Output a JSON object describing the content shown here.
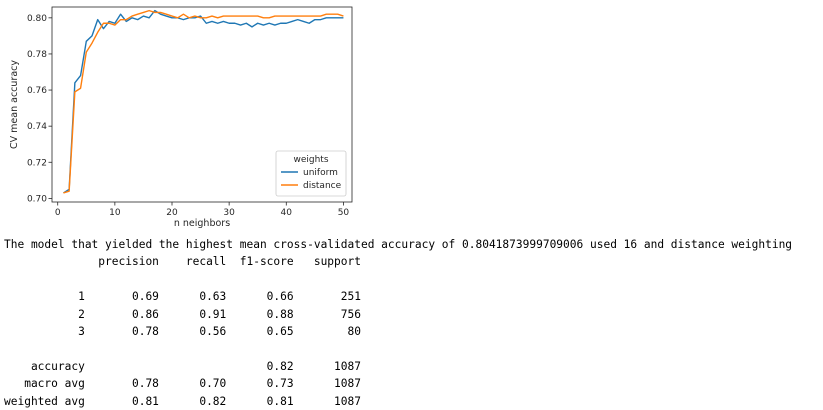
{
  "chart_data": {
    "type": "line",
    "xlabel": "n neighbors",
    "ylabel": "CV mean accuracy",
    "xlim": [
      -1,
      51.5
    ],
    "ylim": [
      0.698,
      0.806
    ],
    "xticks": [
      0,
      10,
      20,
      30,
      40,
      50
    ],
    "yticks": [
      0.7,
      0.72,
      0.74,
      0.76,
      0.78,
      0.8
    ],
    "ytick_labels": [
      "0.70",
      "0.72",
      "0.74",
      "0.76",
      "0.78",
      "0.80"
    ],
    "grid": false,
    "legend": {
      "title": "weights",
      "placement": "lower-right"
    },
    "x": [
      1,
      2,
      3,
      4,
      5,
      6,
      7,
      8,
      9,
      10,
      11,
      12,
      13,
      14,
      15,
      16,
      17,
      18,
      19,
      20,
      21,
      22,
      23,
      24,
      25,
      26,
      27,
      28,
      29,
      30,
      31,
      32,
      33,
      34,
      35,
      36,
      37,
      38,
      39,
      40,
      41,
      42,
      43,
      44,
      45,
      46,
      47,
      48,
      49,
      50
    ],
    "series": [
      {
        "name": "uniform",
        "color": "#1f77b4",
        "values": [
          0.703,
          0.705,
          0.764,
          0.768,
          0.787,
          0.79,
          0.799,
          0.794,
          0.798,
          0.797,
          0.802,
          0.798,
          0.8,
          0.799,
          0.801,
          0.8,
          0.804,
          0.802,
          0.801,
          0.8,
          0.8,
          0.799,
          0.8,
          0.8,
          0.801,
          0.797,
          0.798,
          0.797,
          0.798,
          0.797,
          0.797,
          0.796,
          0.797,
          0.795,
          0.797,
          0.796,
          0.797,
          0.796,
          0.797,
          0.797,
          0.798,
          0.799,
          0.798,
          0.797,
          0.799,
          0.799,
          0.8,
          0.8,
          0.8,
          0.8
        ]
      },
      {
        "name": "distance",
        "color": "#ff7f0e",
        "values": [
          0.703,
          0.704,
          0.759,
          0.761,
          0.781,
          0.786,
          0.792,
          0.797,
          0.797,
          0.796,
          0.799,
          0.799,
          0.801,
          0.802,
          0.803,
          0.804,
          0.803,
          0.803,
          0.802,
          0.801,
          0.8,
          0.802,
          0.8,
          0.801,
          0.8,
          0.8,
          0.801,
          0.8,
          0.801,
          0.801,
          0.801,
          0.801,
          0.801,
          0.801,
          0.801,
          0.8,
          0.8,
          0.801,
          0.801,
          0.801,
          0.801,
          0.801,
          0.801,
          0.801,
          0.801,
          0.801,
          0.802,
          0.802,
          0.802,
          0.801
        ]
      }
    ]
  },
  "output": {
    "summary": "The model that yielded the highest mean cross-validated accuracy of 0.8041873999709006 used 16 and distance weighting",
    "report_header": "              precision    recall  f1-score   support",
    "report_rows": [
      "",
      "           1       0.69      0.63      0.66       251",
      "           2       0.86      0.91      0.88       756",
      "           3       0.78      0.56      0.65        80",
      "",
      "    accuracy                           0.82      1087",
      "   macro avg       0.78      0.70      0.73      1087",
      "weighted avg       0.81      0.82      0.81      1087"
    ]
  }
}
